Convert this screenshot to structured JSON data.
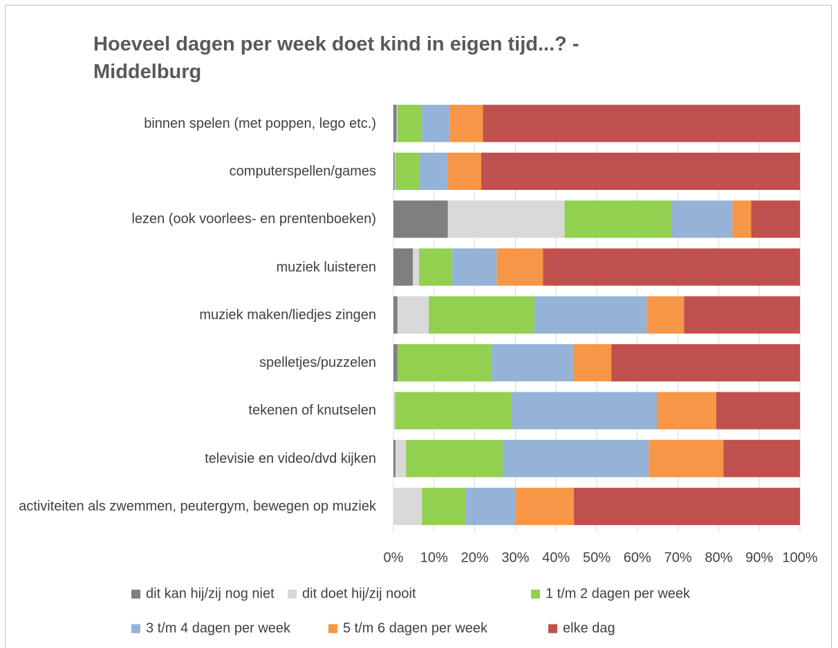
{
  "chart_data": {
    "type": "stacked_barh",
    "title": "Hoeveel dagen per week doet kind in eigen tijd...? - Middelburg",
    "categories": [
      "binnen spelen (met poppen, lego etc.)",
      "computerspellen/games",
      "lezen (ook voorlees- en prentenboeken)",
      "muziek luisteren",
      "muziek maken/liedjes zingen",
      "spelletjes/puzzelen",
      "tekenen of knutselen",
      "televisie en video/dvd kijken",
      "activiteiten als zwemmen, peutergym, bewegen op muziek"
    ],
    "series": [
      {
        "name": "dit kan hij/zij nog niet",
        "color": "#7f7f7f",
        "values": [
          0.8,
          0.3,
          13.4,
          4.8,
          1.0,
          1.0,
          0,
          0.5,
          0
        ]
      },
      {
        "name": "dit doet hij/zij nooit",
        "color": "#d9d9d9",
        "values": [
          0.2,
          0.2,
          28.7,
          1.5,
          7.7,
          0,
          0.4,
          2.6,
          7.0
        ]
      },
      {
        "name": "1 t/m 2 dagen per week",
        "color": "#92d050",
        "values": [
          6.0,
          5.8,
          26.2,
          8.2,
          26.0,
          23.1,
          28.7,
          23.8,
          10.7
        ]
      },
      {
        "name": "3 t/m 4 dagen per week",
        "color": "#95b3d7",
        "values": [
          6.8,
          7.1,
          15.1,
          10.9,
          27.6,
          20.1,
          35.7,
          35.9,
          12.4
        ]
      },
      {
        "name": "5 t/m 6 dagen per week",
        "color": "#f79646",
        "values": [
          8.2,
          8.2,
          4.6,
          11.4,
          9.2,
          9.4,
          14.6,
          18.4,
          14.3
        ]
      },
      {
        "name": "elke dag",
        "color": "#c0504d",
        "values": [
          78.0,
          78.4,
          12.0,
          63.2,
          28.5,
          46.4,
          20.6,
          18.8,
          55.6
        ]
      }
    ],
    "xlim": [
      0,
      100
    ],
    "xticks": [
      {
        "value": 0,
        "label": "0%"
      },
      {
        "value": 10,
        "label": "10%"
      },
      {
        "value": 20,
        "label": "20%"
      },
      {
        "value": 30,
        "label": "30%"
      },
      {
        "value": 40,
        "label": "40%"
      },
      {
        "value": 50,
        "label": "50%"
      },
      {
        "value": 60,
        "label": "60%"
      },
      {
        "value": 70,
        "label": "70%"
      },
      {
        "value": 80,
        "label": "80%"
      },
      {
        "value": 90,
        "label": "90%"
      },
      {
        "value": 100,
        "label": "100%"
      }
    ],
    "grid": true,
    "legend": "bottom"
  }
}
